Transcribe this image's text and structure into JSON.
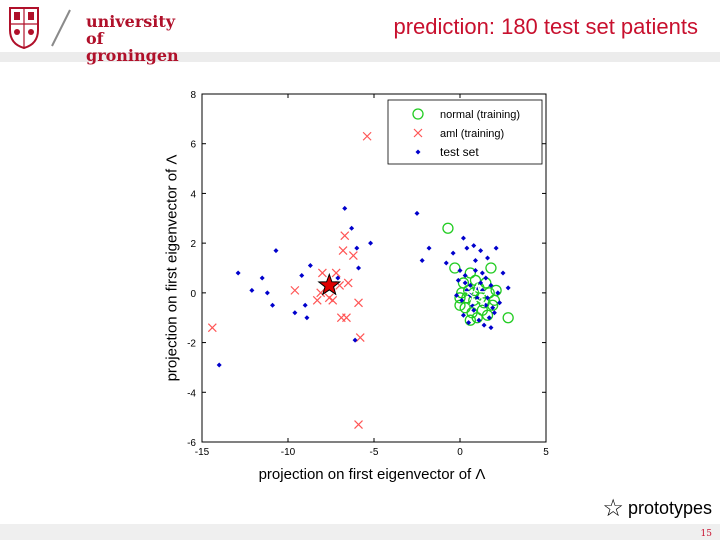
{
  "header": {
    "logo_line1": "university of",
    "logo_line2": "groningen",
    "title": "prediction: 180 test set patients"
  },
  "footer": {
    "page_number": "15",
    "prototypes_label": "prototypes"
  },
  "colors": {
    "brand_red": "#c8102e",
    "normal": "#22cc22",
    "aml": "#ff5555",
    "test": "#0000cc",
    "aml_prototype": "#e00000"
  },
  "chart_data": {
    "type": "scatter",
    "xlabel": "projection on first eigenvector of Λ",
    "ylabel": "projection on first eigenvector of Λ",
    "xlim": [
      -15,
      5
    ],
    "ylim": [
      -6,
      8
    ],
    "xticks": [
      -15,
      -10,
      -5,
      0,
      5
    ],
    "yticks": [
      -6,
      -4,
      -2,
      0,
      2,
      4,
      6,
      8
    ],
    "legend_position": "top-right",
    "series": [
      {
        "name": "normal (training)",
        "marker": "circle",
        "points": [
          [
            -0.7,
            2.6
          ],
          [
            -0.3,
            1.0
          ],
          [
            0.6,
            0.8
          ],
          [
            1.8,
            1.0
          ],
          [
            2.8,
            -1.0
          ],
          [
            0.0,
            -0.2
          ],
          [
            0.2,
            0.4
          ],
          [
            0.5,
            0.1
          ],
          [
            0.8,
            -0.3
          ],
          [
            1.1,
            0.2
          ],
          [
            1.4,
            -0.4
          ],
          [
            1.7,
            0.0
          ],
          [
            2.0,
            -0.3
          ],
          [
            0.3,
            -0.6
          ],
          [
            0.7,
            -0.8
          ],
          [
            1.0,
            -1.0
          ],
          [
            1.3,
            -0.7
          ],
          [
            1.6,
            -0.9
          ],
          [
            0.1,
            0.0
          ],
          [
            1.9,
            -0.5
          ],
          [
            0.9,
            0.5
          ],
          [
            0.4,
            -0.2
          ],
          [
            1.2,
            -0.2
          ],
          [
            0.6,
            -1.1
          ],
          [
            2.1,
            0.1
          ],
          [
            0.0,
            -0.5
          ],
          [
            1.5,
            0.4
          ],
          [
            0.8,
            0.0
          ]
        ]
      },
      {
        "name": "aml (training)",
        "marker": "x",
        "points": [
          [
            -5.4,
            6.3
          ],
          [
            -14.4,
            -1.4
          ],
          [
            -5.9,
            -5.3
          ],
          [
            -6.7,
            2.3
          ],
          [
            -6.2,
            1.5
          ],
          [
            -6.8,
            1.7
          ],
          [
            -7.2,
            0.8
          ],
          [
            -8.0,
            0.8
          ],
          [
            -9.6,
            0.1
          ],
          [
            -8.1,
            0.0
          ],
          [
            -7.6,
            -0.2
          ],
          [
            -8.3,
            -0.3
          ],
          [
            -7.4,
            -0.3
          ],
          [
            -6.9,
            -1.0
          ],
          [
            -6.6,
            -1.0
          ],
          [
            -5.9,
            -0.4
          ],
          [
            -5.8,
            -1.8
          ],
          [
            -6.5,
            0.4
          ],
          [
            -7.0,
            0.3
          ]
        ]
      },
      {
        "name": "test set",
        "marker": "dot",
        "points": [
          [
            -2.5,
            3.2
          ],
          [
            -5.2,
            2.0
          ],
          [
            -6.0,
            1.8
          ],
          [
            -6.7,
            3.4
          ],
          [
            -6.3,
            2.6
          ],
          [
            -12.9,
            0.8
          ],
          [
            -10.7,
            1.7
          ],
          [
            -11.5,
            0.6
          ],
          [
            -11.2,
            0.0
          ],
          [
            -12.1,
            0.1
          ],
          [
            -10.9,
            -0.5
          ],
          [
            -9.2,
            0.7
          ],
          [
            -9.0,
            -0.5
          ],
          [
            -8.9,
            -1.0
          ],
          [
            -9.6,
            -0.8
          ],
          [
            -8.7,
            1.1
          ],
          [
            -7.1,
            0.6
          ],
          [
            -5.9,
            1.0
          ],
          [
            -14.0,
            -2.9
          ],
          [
            -6.1,
            -1.9
          ],
          [
            -2.2,
            1.3
          ],
          [
            -1.8,
            1.8
          ],
          [
            -0.8,
            1.2
          ],
          [
            -0.4,
            1.6
          ],
          [
            0.2,
            2.2
          ],
          [
            0.4,
            1.8
          ],
          [
            0.8,
            1.9
          ],
          [
            1.2,
            1.7
          ],
          [
            1.6,
            1.4
          ],
          [
            2.1,
            1.8
          ],
          [
            2.5,
            0.8
          ],
          [
            2.8,
            0.2
          ],
          [
            -0.1,
            0.5
          ],
          [
            0.3,
            0.7
          ],
          [
            0.6,
            0.3
          ],
          [
            0.9,
            0.9
          ],
          [
            1.2,
            0.4
          ],
          [
            1.5,
            0.6
          ],
          [
            1.8,
            0.3
          ],
          [
            2.2,
            0.0
          ],
          [
            -0.2,
            -0.1
          ],
          [
            0.1,
            -0.3
          ],
          [
            0.4,
            0.1
          ],
          [
            0.7,
            -0.5
          ],
          [
            1.0,
            -0.2
          ],
          [
            1.3,
            0.1
          ],
          [
            1.6,
            -0.2
          ],
          [
            1.9,
            -0.6
          ],
          [
            2.3,
            -0.4
          ],
          [
            0.2,
            -0.9
          ],
          [
            0.5,
            -1.2
          ],
          [
            0.8,
            -0.7
          ],
          [
            1.1,
            -1.1
          ],
          [
            1.4,
            -1.3
          ],
          [
            1.7,
            -1.0
          ],
          [
            2.0,
            -0.8
          ],
          [
            0.0,
            0.9
          ],
          [
            0.9,
            1.3
          ],
          [
            1.3,
            0.8
          ],
          [
            0.6,
            -0.1
          ],
          [
            1.0,
            0.2
          ],
          [
            1.5,
            -0.5
          ],
          [
            0.3,
            0.4
          ],
          [
            1.8,
            -1.4
          ]
        ]
      }
    ],
    "prototypes": [
      {
        "label": "aml prototype",
        "x": -7.6,
        "y": 0.3
      },
      {
        "label": "normal prototype",
        "x": 1.0,
        "y": -0.1
      }
    ]
  }
}
